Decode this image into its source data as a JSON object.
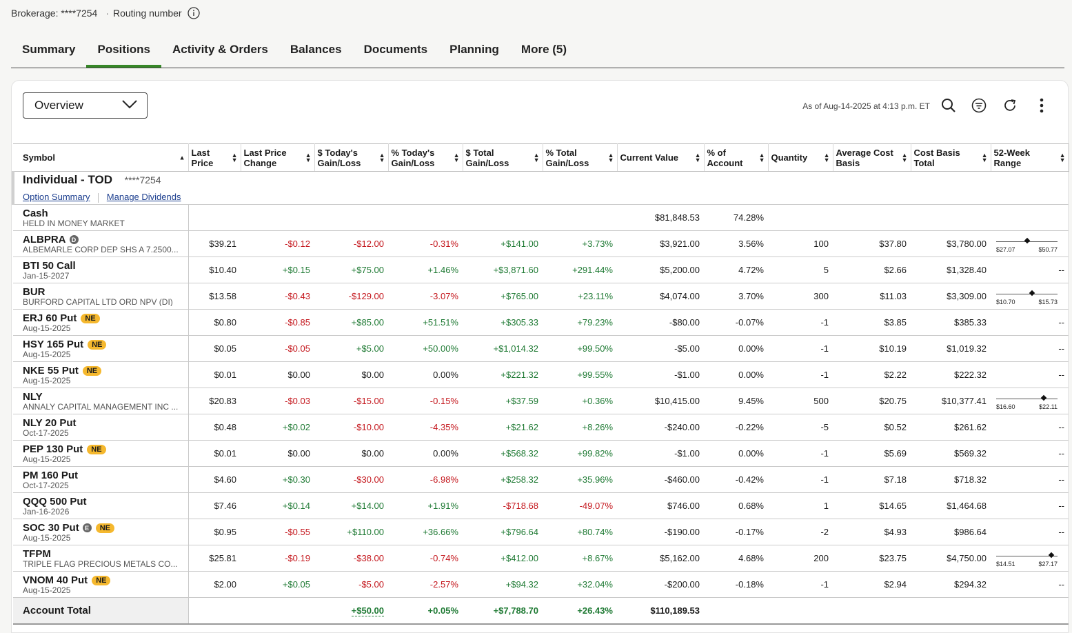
{
  "header": {
    "brokerage": "Brokerage: ****7254",
    "routing": "Routing number"
  },
  "tabs": [
    "Summary",
    "Positions",
    "Activity & Orders",
    "Balances",
    "Documents",
    "Planning",
    "More (5)"
  ],
  "active_tab": "Positions",
  "view": {
    "selected": "Overview"
  },
  "as_of": "As of Aug-14-2025 at 4:13 p.m. ET",
  "columns": [
    "Symbol",
    "Last Price",
    "Last Price Change",
    "$ Today's Gain/Loss",
    "% Today's Gain/Loss",
    "$ Total Gain/Loss",
    "% Total Gain/Loss",
    "Current Value",
    "% of Account",
    "Quantity",
    "Average Cost Basis",
    "Cost Basis Total",
    "52-Week Range"
  ],
  "account": {
    "name": "Individual - TOD",
    "number": "****7254",
    "links": [
      "Option Summary",
      "Manage Dividends"
    ]
  },
  "cash": {
    "symbol": "Cash",
    "desc": "HELD IN MONEY MARKET",
    "value": "$81,848.53",
    "pct": "74.28%"
  },
  "rows": [
    {
      "symbol": "ALBPRA",
      "tag": "D",
      "desc": "ALBEMARLE CORP DEP SHS A 7.2500...",
      "last": "$39.21",
      "chg": "-$0.12",
      "tdd": "-$12.00",
      "tdp": "-0.31%",
      "totd": "+$141.00",
      "totp": "+3.73%",
      "cur": "$3,921.00",
      "pct": "3.56%",
      "qty": "100",
      "avg": "$37.80",
      "cost": "$3,780.00",
      "range": {
        "lo": "$27.07",
        "hi": "$50.77",
        "pos": 0.5
      }
    },
    {
      "symbol": "BTI 50 Call",
      "desc": "Jan-15-2027",
      "last": "$10.40",
      "chg": "+$0.15",
      "tdd": "+$75.00",
      "tdp": "+1.46%",
      "totd": "+$3,871.60",
      "totp": "+291.44%",
      "cur": "$5,200.00",
      "pct": "4.72%",
      "qty": "5",
      "avg": "$2.66",
      "cost": "$1,328.40",
      "dash": "--"
    },
    {
      "symbol": "BUR",
      "desc": "BURFORD CAPITAL LTD ORD NPV (DI)",
      "last": "$13.58",
      "chg": "-$0.43",
      "tdd": "-$129.00",
      "tdp": "-3.07%",
      "totd": "+$765.00",
      "totp": "+23.11%",
      "cur": "$4,074.00",
      "pct": "3.70%",
      "qty": "300",
      "avg": "$11.03",
      "cost": "$3,309.00",
      "range": {
        "lo": "$10.70",
        "hi": "$15.73",
        "pos": 0.58
      }
    },
    {
      "symbol": "ERJ 60 Put",
      "ne": "NE",
      "desc": "Aug-15-2025",
      "last": "$0.80",
      "chg": "-$0.85",
      "tdd": "+$85.00",
      "tdp": "+51.51%",
      "totd": "+$305.33",
      "totp": "+79.23%",
      "cur": "-$80.00",
      "pct": "-0.07%",
      "qty": "-1",
      "avg": "$3.85",
      "cost": "$385.33",
      "dash": "--"
    },
    {
      "symbol": "HSY 165 Put",
      "ne": "NE",
      "desc": "Aug-15-2025",
      "last": "$0.05",
      "chg": "-$0.05",
      "tdd": "+$5.00",
      "tdp": "+50.00%",
      "totd": "+$1,014.32",
      "totp": "+99.50%",
      "cur": "-$5.00",
      "pct": "0.00%",
      "qty": "-1",
      "avg": "$10.19",
      "cost": "$1,019.32",
      "dash": "--"
    },
    {
      "symbol": "NKE 55 Put",
      "ne": "NE",
      "desc": "Aug-15-2025",
      "last": "$0.01",
      "chg": "$0.00",
      "tdd": "$0.00",
      "tdp": "0.00%",
      "totd": "+$221.32",
      "totp": "+99.55%",
      "cur": "-$1.00",
      "pct": "0.00%",
      "qty": "-1",
      "avg": "$2.22",
      "cost": "$222.32",
      "dash": "--"
    },
    {
      "symbol": "NLY",
      "desc": "ANNALY CAPITAL MANAGEMENT INC ...",
      "last": "$20.83",
      "chg": "-$0.03",
      "tdd": "-$15.00",
      "tdp": "-0.15%",
      "totd": "+$37.59",
      "totp": "+0.36%",
      "cur": "$10,415.00",
      "pct": "9.45%",
      "qty": "500",
      "avg": "$20.75",
      "cost": "$10,377.41",
      "range": {
        "lo": "$16.60",
        "hi": "$22.11",
        "pos": 0.77
      }
    },
    {
      "symbol": "NLY 20 Put",
      "desc": "Oct-17-2025",
      "last": "$0.48",
      "chg": "+$0.02",
      "tdd": "-$10.00",
      "tdp": "-4.35%",
      "totd": "+$21.62",
      "totp": "+8.26%",
      "cur": "-$240.00",
      "pct": "-0.22%",
      "qty": "-5",
      "avg": "$0.52",
      "cost": "$261.62",
      "dash": "--"
    },
    {
      "symbol": "PEP 130 Put",
      "ne": "NE",
      "desc": "Aug-15-2025",
      "last": "$0.01",
      "chg": "$0.00",
      "tdd": "$0.00",
      "tdp": "0.00%",
      "totd": "+$568.32",
      "totp": "+99.82%",
      "cur": "-$1.00",
      "pct": "0.00%",
      "qty": "-1",
      "avg": "$5.69",
      "cost": "$569.32",
      "dash": "--"
    },
    {
      "symbol": "PM 160 Put",
      "desc": "Oct-17-2025",
      "last": "$4.60",
      "chg": "+$0.30",
      "tdd": "-$30.00",
      "tdp": "-6.98%",
      "totd": "+$258.32",
      "totp": "+35.96%",
      "cur": "-$460.00",
      "pct": "-0.42%",
      "qty": "-1",
      "avg": "$7.18",
      "cost": "$718.32",
      "dash": "--"
    },
    {
      "symbol": "QQQ 500 Put",
      "desc": "Jan-16-2026",
      "last": "$7.46",
      "chg": "+$0.14",
      "tdd": "+$14.00",
      "tdp": "+1.91%",
      "totd": "-$718.68",
      "totp": "-49.07%",
      "cur": "$746.00",
      "pct": "0.68%",
      "qty": "1",
      "avg": "$14.65",
      "cost": "$1,464.68",
      "dash": "--"
    },
    {
      "symbol": "SOC 30 Put",
      "tag": "E",
      "ne": "NE",
      "desc": "Aug-15-2025",
      "last": "$0.95",
      "chg": "-$0.55",
      "tdd": "+$110.00",
      "tdp": "+36.66%",
      "totd": "+$796.64",
      "totp": "+80.74%",
      "cur": "-$190.00",
      "pct": "-0.17%",
      "qty": "-2",
      "avg": "$4.93",
      "cost": "$986.64",
      "dash": "--"
    },
    {
      "symbol": "TFPM",
      "desc": "TRIPLE FLAG PRECIOUS METALS CO...",
      "last": "$25.81",
      "chg": "-$0.19",
      "tdd": "-$38.00",
      "tdp": "-0.74%",
      "totd": "+$412.00",
      "totp": "+8.67%",
      "cur": "$5,162.00",
      "pct": "4.68%",
      "qty": "200",
      "avg": "$23.75",
      "cost": "$4,750.00",
      "range": {
        "lo": "$14.51",
        "hi": "$27.17",
        "pos": 0.9
      }
    },
    {
      "symbol": "VNOM 40 Put",
      "ne": "NE",
      "desc": "Aug-15-2025",
      "last": "$2.00",
      "chg": "+$0.05",
      "tdd": "-$5.00",
      "tdp": "-2.57%",
      "totd": "+$94.32",
      "totp": "+32.04%",
      "cur": "-$200.00",
      "pct": "-0.18%",
      "qty": "-1",
      "avg": "$2.94",
      "cost": "$294.32",
      "dash": "--"
    }
  ],
  "total": {
    "label": "Account Total",
    "tdd": "+$50.00",
    "tdp": "+0.05%",
    "totd": "+$7,788.70",
    "totp": "+26.43%",
    "cur": "$110,189.53"
  },
  "colors": {
    "positive": "#1f7a34",
    "negative": "#c4161c",
    "accent": "#368727",
    "badge": "#f5b82e"
  }
}
